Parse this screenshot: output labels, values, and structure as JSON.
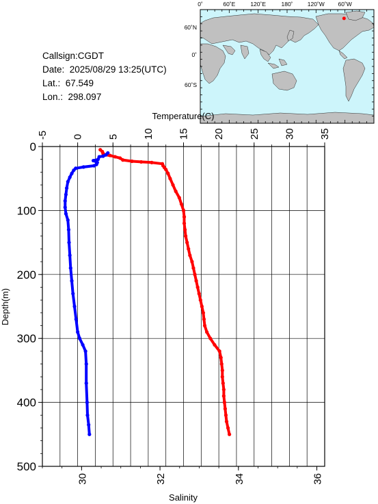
{
  "station": {
    "callsign": "Callsign:CGDT",
    "date": "Date:  2025/08/29 13:25(UTC)",
    "lat": "Lat.:  67.549",
    "lon": "Lon.:  298.097"
  },
  "map": {
    "top_labels": [
      "0˚",
      "60˚E",
      "120˚E",
      "180˚",
      "120˚W",
      "60˚W"
    ],
    "left_labels": [
      "60˚N",
      "0˚",
      "60˚S"
    ],
    "ocean_color": "#cdf5fb",
    "land_color": "#c0c0c0",
    "marker_color": "#ff0000",
    "station_lat": 67.549,
    "station_lon": 298.097
  },
  "chart_data": {
    "type": "line",
    "title": "",
    "xlabel_top": "Temperature(C)",
    "xlabel_bottom": "Salinity",
    "ylabel": "Depth(m)",
    "temperature_ticks": [
      "-5",
      "0",
      "5",
      "10",
      "15",
      "20",
      "25",
      "30",
      "35"
    ],
    "salinity_ticks": [
      "30",
      "32",
      "34",
      "36"
    ],
    "depth_ticks": [
      "0",
      "100",
      "200",
      "300",
      "400",
      "500"
    ],
    "temperature_range": [
      -5,
      35
    ],
    "salinity_range": [
      29,
      36.2
    ],
    "depth_range": [
      0,
      500
    ],
    "grid": true,
    "series": [
      {
        "color": "#ff0000",
        "axis": "temperature",
        "points": [
          [
            3.2,
            5
          ],
          [
            3.5,
            8
          ],
          [
            3.6,
            11
          ],
          [
            3.9,
            13
          ],
          [
            4.6,
            14
          ],
          [
            5.3,
            16
          ],
          [
            6.0,
            18
          ],
          [
            6.4,
            21
          ],
          [
            7.7,
            23
          ],
          [
            9.0,
            24
          ],
          [
            10.5,
            25
          ],
          [
            12.0,
            27
          ],
          [
            12.1,
            30
          ],
          [
            12.3,
            33
          ],
          [
            12.5,
            36
          ],
          [
            12.8,
            42
          ],
          [
            13.1,
            50
          ],
          [
            13.5,
            60
          ],
          [
            13.9,
            70
          ],
          [
            14.4,
            80
          ],
          [
            14.7,
            90
          ],
          [
            15.0,
            100
          ],
          [
            15.1,
            110
          ],
          [
            15.1,
            120
          ],
          [
            15.2,
            130
          ],
          [
            15.3,
            140
          ],
          [
            15.5,
            150
          ],
          [
            15.7,
            160
          ],
          [
            15.9,
            170
          ],
          [
            16.2,
            180
          ],
          [
            16.4,
            190
          ],
          [
            16.6,
            200
          ],
          [
            16.8,
            210
          ],
          [
            17.0,
            220
          ],
          [
            17.2,
            230
          ],
          [
            17.4,
            240
          ],
          [
            17.6,
            250
          ],
          [
            17.8,
            260
          ],
          [
            17.9,
            270
          ],
          [
            18.0,
            280
          ],
          [
            18.3,
            290
          ],
          [
            18.8,
            300
          ],
          [
            19.4,
            310
          ],
          [
            20.1,
            320
          ],
          [
            20.3,
            330
          ],
          [
            20.4,
            340
          ],
          [
            20.5,
            350
          ],
          [
            20.5,
            360
          ],
          [
            20.6,
            370
          ],
          [
            20.7,
            380
          ],
          [
            20.7,
            390
          ],
          [
            20.8,
            400
          ],
          [
            20.9,
            410
          ],
          [
            21.0,
            420
          ],
          [
            21.1,
            430
          ],
          [
            21.3,
            440
          ],
          [
            21.5,
            450
          ]
        ]
      },
      {
        "color": "#0000ff",
        "axis": "salinity",
        "points": [
          [
            30.67,
            10
          ],
          [
            30.62,
            13
          ],
          [
            30.55,
            15
          ],
          [
            30.45,
            16
          ],
          [
            30.42,
            20
          ],
          [
            30.3,
            22
          ],
          [
            30.4,
            25
          ],
          [
            30.38,
            28
          ],
          [
            30.32,
            30
          ],
          [
            30.05,
            32
          ],
          [
            29.85,
            34
          ],
          [
            29.8,
            37
          ],
          [
            29.75,
            42
          ],
          [
            29.7,
            48
          ],
          [
            29.65,
            55
          ],
          [
            29.62,
            65
          ],
          [
            29.6,
            75
          ],
          [
            29.58,
            85
          ],
          [
            29.58,
            95
          ],
          [
            29.6,
            105
          ],
          [
            29.65,
            115
          ],
          [
            29.67,
            130
          ],
          [
            29.68,
            150
          ],
          [
            29.7,
            170
          ],
          [
            29.72,
            190
          ],
          [
            29.75,
            210
          ],
          [
            29.78,
            230
          ],
          [
            29.82,
            250
          ],
          [
            29.86,
            270
          ],
          [
            29.9,
            290
          ],
          [
            29.95,
            300
          ],
          [
            30.03,
            310
          ],
          [
            30.1,
            320
          ],
          [
            30.12,
            340
          ],
          [
            30.12,
            370
          ],
          [
            30.14,
            400
          ],
          [
            30.15,
            420
          ],
          [
            30.18,
            435
          ],
          [
            30.2,
            450
          ]
        ]
      }
    ]
  }
}
